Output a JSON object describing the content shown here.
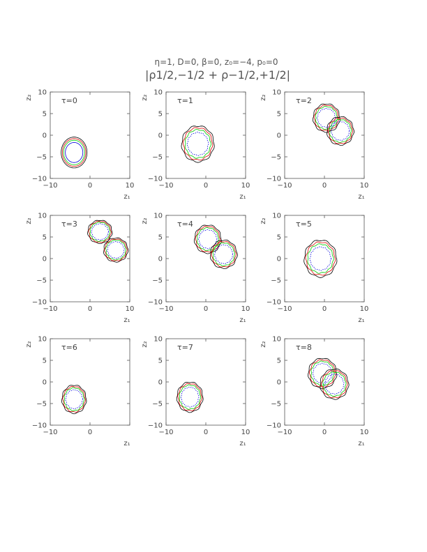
{
  "figure": {
    "parameters": "η=1, D=0, β=0, z₀=−4, p₀=0",
    "quantity": "|ρ1/2,−1/2 + ρ−1/2,+1/2|"
  },
  "chart_data": [
    {
      "type": "contour",
      "panel_label": "τ=0",
      "xlabel": "z₁",
      "ylabel": "z₂",
      "xlim": [
        -10,
        10
      ],
      "ylim": [
        -10,
        10
      ],
      "xticks": [
        "−10",
        "0",
        "10"
      ],
      "yticks": [
        "10",
        "5",
        "0",
        "−5",
        "−10"
      ],
      "blobs": [
        {
          "cx": -4,
          "cy": -4,
          "rx": 2.2,
          "ry": 2.6
        }
      ]
    },
    {
      "type": "contour",
      "panel_label": "τ=1",
      "xlabel": "z₁",
      "ylabel": "z₂",
      "xlim": [
        -10,
        10
      ],
      "ylim": [
        -10,
        10
      ],
      "xticks": [
        "−10",
        "0",
        "10"
      ],
      "yticks": [
        "10",
        "5",
        "0",
        "−5",
        "−10"
      ],
      "blobs": [
        {
          "cx": -2,
          "cy": -2,
          "rx": 3,
          "ry": 3.2
        }
      ]
    },
    {
      "type": "contour",
      "panel_label": "τ=2",
      "xlabel": "z₁",
      "ylabel": "z₂",
      "xlim": [
        -10,
        10
      ],
      "ylim": [
        -10,
        10
      ],
      "xticks": [
        "−10",
        "0",
        "10"
      ],
      "yticks": [
        "10",
        "5",
        "0",
        "−5",
        "−10"
      ],
      "blobs": [
        {
          "cx": 0.5,
          "cy": 4,
          "rx": 2.3,
          "ry": 2.3
        },
        {
          "cx": 4,
          "cy": 1,
          "rx": 2.3,
          "ry": 2.3
        }
      ]
    },
    {
      "type": "contour",
      "panel_label": "τ=3",
      "xlabel": "z₁",
      "ylabel": "z₂",
      "xlim": [
        -10,
        10
      ],
      "ylim": [
        -10,
        10
      ],
      "xticks": [
        "−10",
        "0",
        "10"
      ],
      "yticks": [
        "10",
        "5",
        "0",
        "−5",
        "−10"
      ],
      "blobs": [
        {
          "cx": 2.5,
          "cy": 6.2,
          "rx": 2,
          "ry": 1.7
        },
        {
          "cx": 6.5,
          "cy": 2,
          "rx": 2,
          "ry": 1.8
        }
      ]
    },
    {
      "type": "contour",
      "panel_label": "τ=4",
      "xlabel": "z₁",
      "ylabel": "z₂",
      "xlim": [
        -10,
        10
      ],
      "ylim": [
        -10,
        10
      ],
      "xticks": [
        "−10",
        "0",
        "10"
      ],
      "yticks": [
        "10",
        "5",
        "0",
        "−5",
        "−10"
      ],
      "blobs": [
        {
          "cx": 0.5,
          "cy": 4.5,
          "rx": 2.3,
          "ry": 2.3
        },
        {
          "cx": 4.5,
          "cy": 1,
          "rx": 2.3,
          "ry": 2.3
        }
      ]
    },
    {
      "type": "contour",
      "panel_label": "τ=5",
      "xlabel": "z₁",
      "ylabel": "z₂",
      "xlim": [
        -10,
        10
      ],
      "ylim": [
        -10,
        10
      ],
      "xticks": [
        "−10",
        "0",
        "10"
      ],
      "yticks": [
        "10",
        "5",
        "0",
        "−5",
        "−10"
      ],
      "blobs": [
        {
          "cx": -1,
          "cy": 0,
          "rx": 3,
          "ry": 3.3
        }
      ]
    },
    {
      "type": "contour",
      "panel_label": "τ=6",
      "xlabel": "z₁",
      "ylabel": "z₂",
      "xlim": [
        -10,
        10
      ],
      "ylim": [
        -10,
        10
      ],
      "xticks": [
        "−10",
        "0"
      ],
      "yticks": [
        "10",
        "5",
        "0",
        "−5",
        "−10"
      ],
      "blobs": [
        {
          "cx": -4,
          "cy": -4,
          "rx": 2,
          "ry": 2.3
        }
      ]
    },
    {
      "type": "contour",
      "panel_label": "τ=7",
      "xlabel": "z₁",
      "ylabel": "z₂",
      "xlim": [
        -10,
        10
      ],
      "ylim": [
        -10,
        10
      ],
      "xticks": [
        "−10",
        "0",
        "10"
      ],
      "yticks": [
        "10",
        "5",
        "0",
        "−5",
        "−10"
      ],
      "blobs": [
        {
          "cx": -4,
          "cy": -3.5,
          "rx": 2.2,
          "ry": 2.5
        }
      ]
    },
    {
      "type": "contour",
      "panel_label": "τ=8",
      "xlabel": "z₁",
      "ylabel": "z₂",
      "xlim": [
        -10,
        10
      ],
      "ylim": [
        -10,
        10
      ],
      "xticks": [
        "−10",
        "0",
        "10"
      ],
      "yticks": [
        "10",
        "5",
        "0",
        "−5",
        "−10"
      ],
      "blobs": [
        {
          "cx": -0.5,
          "cy": 2,
          "rx": 2.5,
          "ry": 2.5
        },
        {
          "cx": 2.5,
          "cy": -0.5,
          "rx": 2.5,
          "ry": 2.5
        }
      ]
    }
  ],
  "contour_colors": [
    "#000000",
    "#e00000",
    "#00cc00",
    "#0000dd"
  ]
}
